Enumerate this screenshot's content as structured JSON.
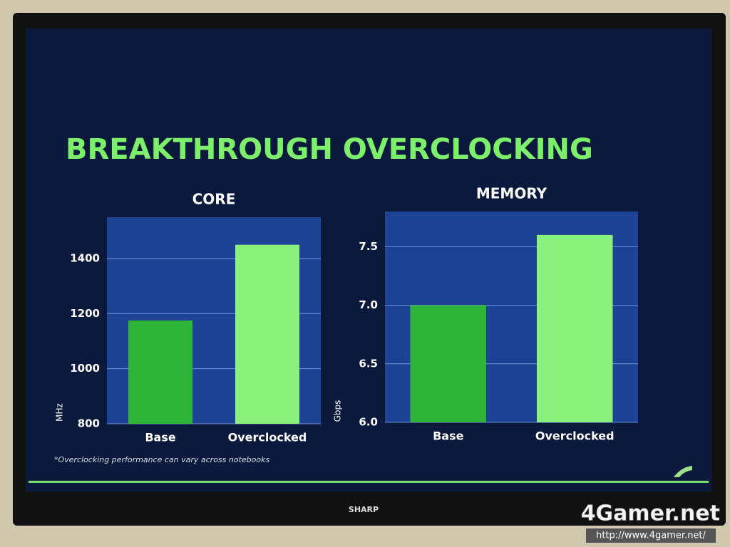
{
  "title": "BREAKTHROUGH OVERCLOCKING",
  "chart_data": [
    {
      "type": "bar",
      "title": "CORE",
      "y_label": "MHz",
      "categories": [
        "Base",
        "Overclocked"
      ],
      "values": [
        1175,
        1450
      ],
      "colors": [
        "#2fb43a",
        "#8af07e"
      ],
      "ylim": [
        800,
        1550
      ],
      "yticks": [
        800,
        1000,
        1200,
        1400
      ],
      "grid": true
    },
    {
      "type": "bar",
      "title": "MEMORY",
      "y_label": "Gbps",
      "categories": [
        "Base",
        "Overclocked"
      ],
      "values": [
        7.0,
        7.6
      ],
      "colors": [
        "#2fb43a",
        "#8af07e"
      ],
      "ylim": [
        6,
        7.8
      ],
      "yticks": [
        {
          "value": 6,
          "label": "6.0"
        },
        6.5,
        {
          "value": 7,
          "label": "7.0"
        },
        7.5
      ],
      "grid": true
    }
  ],
  "footnote": "*Overclocking performance can vary across notebooks",
  "tv_brand": "SHARP",
  "watermark": {
    "logo": "4Gamer.net",
    "url": "http://www.4gamer.net/"
  }
}
